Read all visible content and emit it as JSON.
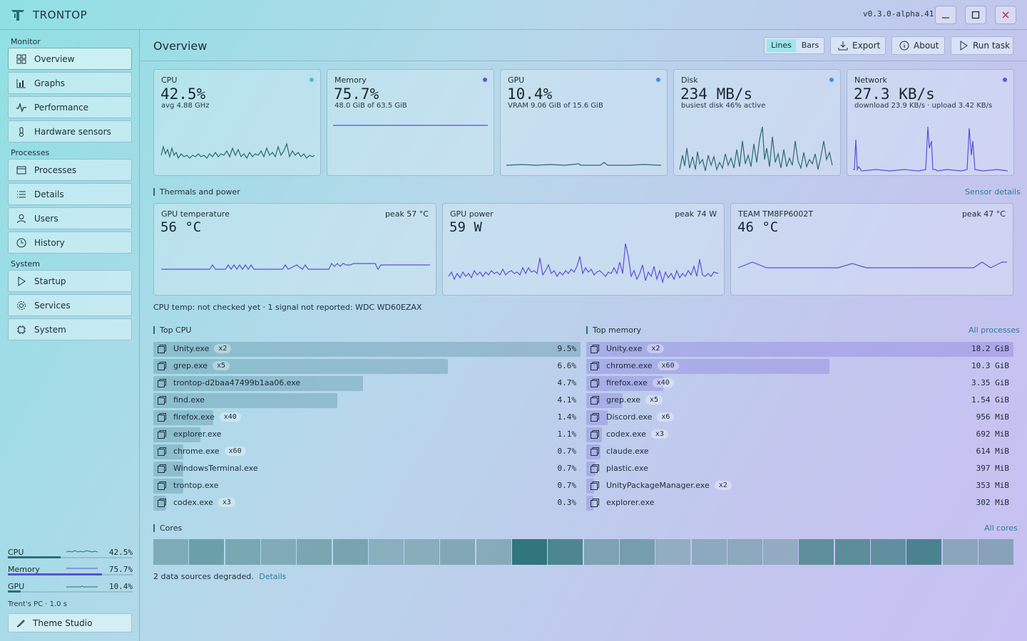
{
  "app": {
    "title": "TRONTOP",
    "version": "v0.3.0-alpha.41"
  },
  "sidebar": {
    "sections": {
      "monitor": "Monitor",
      "processes": "Processes",
      "system": "System"
    },
    "items": [
      {
        "label": "Overview",
        "icon": "grid-icon"
      },
      {
        "label": "Graphs",
        "icon": "chart-icon"
      },
      {
        "label": "Performance",
        "icon": "pulse-icon"
      },
      {
        "label": "Hardware sensors",
        "icon": "thermometer-icon"
      },
      {
        "label": "Processes",
        "icon": "window-icon"
      },
      {
        "label": "Details",
        "icon": "list-icon"
      },
      {
        "label": "Users",
        "icon": "user-icon"
      },
      {
        "label": "History",
        "icon": "clock-icon"
      },
      {
        "label": "Startup",
        "icon": "play-icon"
      },
      {
        "label": "Services",
        "icon": "gear-icon"
      },
      {
        "label": "System",
        "icon": "chip-icon"
      }
    ],
    "mini": [
      {
        "label": "CPU",
        "value": "42.5%",
        "fraction": 0.425,
        "color": "#2a6f78"
      },
      {
        "label": "Memory",
        "value": "75.7%",
        "fraction": 0.757,
        "color": "#5a50d8"
      },
      {
        "label": "GPU",
        "value": "10.4%",
        "fraction": 0.104,
        "color": "#2a6f78"
      }
    ],
    "host": "Trent's PC · 1.0 s",
    "theme_button": "Theme Studio"
  },
  "header": {
    "title": "Overview",
    "toggle": {
      "lines": "Lines",
      "bars": "Bars",
      "selected": "Lines"
    },
    "export": "Export",
    "about": "About",
    "run_task": "Run task"
  },
  "stats": [
    {
      "title": "CPU",
      "value": "42.5%",
      "sub": "avg 4.88 GHz",
      "dot": "#40c0c8"
    },
    {
      "title": "Memory",
      "value": "75.7%",
      "sub": "48.0 GiB of 63.5 GiB",
      "dot": "#5a50e8"
    },
    {
      "title": "GPU",
      "value": "10.4%",
      "sub": "VRAM 9.06 GiB of 15.6 GiB",
      "dot": "#3a8ee8"
    },
    {
      "title": "Disk",
      "value": "234 MB/s",
      "sub": "busiest disk 46% active",
      "dot": "#3a8ee8"
    },
    {
      "title": "Network",
      "value": "27.3 KB/s",
      "sub": "download 23.9 KB/s · upload 3.42 KB/s",
      "dot": "#5a50e8"
    }
  ],
  "thermals": {
    "header": "Thermals and power",
    "link": "Sensor details",
    "cards": [
      {
        "title": "GPU temperature",
        "value": "56 °C",
        "peak": "peak 57 °C"
      },
      {
        "title": "GPU power",
        "value": "59 W",
        "peak": "peak 74 W"
      },
      {
        "title": "TEAM TM8FP6002T",
        "value": "46 °C",
        "peak": "peak 47 °C"
      }
    ],
    "note": "CPU temp: not checked yet  ·  1 signal not reported: WDC WD60EZAX"
  },
  "top_cpu": {
    "header": "Top CPU",
    "rows": [
      {
        "name": "Unity.exe",
        "count": "x2",
        "value": "9.5%",
        "share": 1.0
      },
      {
        "name": "grep.exe",
        "count": "x5",
        "value": "6.6%",
        "share": 0.69
      },
      {
        "name": "trontop-d2baa47499b1aa06.exe",
        "count": "",
        "value": "4.7%",
        "share": 0.49
      },
      {
        "name": "find.exe",
        "count": "",
        "value": "4.1%",
        "share": 0.43
      },
      {
        "name": "firefox.exe",
        "count": "x40",
        "value": "1.4%",
        "share": 0.14
      },
      {
        "name": "explorer.exe",
        "count": "",
        "value": "1.1%",
        "share": 0.11
      },
      {
        "name": "chrome.exe",
        "count": "x60",
        "value": "0.7%",
        "share": 0.07
      },
      {
        "name": "WindowsTerminal.exe",
        "count": "",
        "value": "0.7%",
        "share": 0.07
      },
      {
        "name": "trontop.exe",
        "count": "",
        "value": "0.7%",
        "share": 0.07
      },
      {
        "name": "codex.exe",
        "count": "x3",
        "value": "0.3%",
        "share": 0.03
      }
    ]
  },
  "top_memory": {
    "header": "Top memory",
    "link": "All processes",
    "rows": [
      {
        "name": "Unity.exe",
        "count": "x2",
        "value": "18.2 GiB",
        "share": 1.0
      },
      {
        "name": "chrome.exe",
        "count": "x60",
        "value": "10.3 GiB",
        "share": 0.57
      },
      {
        "name": "firefox.exe",
        "count": "x40",
        "value": "3.35 GiB",
        "share": 0.18
      },
      {
        "name": "grep.exe",
        "count": "x5",
        "value": "1.54 GiB",
        "share": 0.085
      },
      {
        "name": "Discord.exe",
        "count": "x6",
        "value": "956 MiB",
        "share": 0.05
      },
      {
        "name": "codex.exe",
        "count": "x3",
        "value": "692 MiB",
        "share": 0.037
      },
      {
        "name": "claude.exe",
        "count": "",
        "value": "614 MiB",
        "share": 0.033
      },
      {
        "name": "plastic.exe",
        "count": "",
        "value": "397 MiB",
        "share": 0.021
      },
      {
        "name": "UnityPackageManager.exe",
        "count": "x2",
        "value": "353 MiB",
        "share": 0.019
      },
      {
        "name": "explorer.exe",
        "count": "",
        "value": "302 MiB",
        "share": 0.016
      }
    ]
  },
  "cores": {
    "header": "Cores",
    "link": "All cores",
    "loads": [
      0.45,
      0.58,
      0.5,
      0.45,
      0.5,
      0.52,
      0.38,
      0.4,
      0.45,
      0.42,
      0.95,
      0.8,
      0.5,
      0.55,
      0.35,
      0.38,
      0.4,
      0.35,
      0.7,
      0.72,
      0.68,
      0.82,
      0.42,
      0.45
    ]
  },
  "footer": {
    "text": "2 data sources degraded.",
    "link": "Details"
  }
}
